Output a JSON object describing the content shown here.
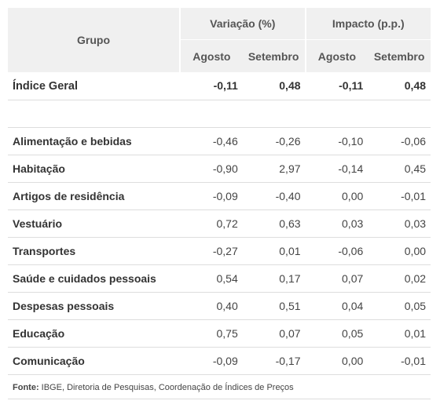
{
  "header": {
    "group_label": "Grupo",
    "variation_label": "Variação (%)",
    "impact_label": "Impacto (p.p.)",
    "august_label": "Agosto",
    "september_label": "Setembro"
  },
  "total": {
    "name": "Índice Geral",
    "var_aug": "-0,11",
    "var_sep": "0,48",
    "imp_aug": "-0,11",
    "imp_sep": "0,48"
  },
  "rows": [
    {
      "name": "Alimentação e bebidas",
      "var_aug": "-0,46",
      "var_sep": "-0,26",
      "imp_aug": "-0,10",
      "imp_sep": "-0,06"
    },
    {
      "name": "Habitação",
      "var_aug": "-0,90",
      "var_sep": "2,97",
      "imp_aug": "-0,14",
      "imp_sep": "0,45"
    },
    {
      "name": "Artigos de residência",
      "var_aug": "-0,09",
      "var_sep": "-0,40",
      "imp_aug": "0,00",
      "imp_sep": "-0,01"
    },
    {
      "name": "Vestuário",
      "var_aug": "0,72",
      "var_sep": "0,63",
      "imp_aug": "0,03",
      "imp_sep": "0,03"
    },
    {
      "name": "Transportes",
      "var_aug": "-0,27",
      "var_sep": "0,01",
      "imp_aug": "-0,06",
      "imp_sep": "0,00"
    },
    {
      "name": "Saúde e cuidados pessoais",
      "var_aug": "0,54",
      "var_sep": "0,17",
      "imp_aug": "0,07",
      "imp_sep": "0,02"
    },
    {
      "name": "Despesas pessoais",
      "var_aug": "0,40",
      "var_sep": "0,51",
      "imp_aug": "0,04",
      "imp_sep": "0,05"
    },
    {
      "name": "Educação",
      "var_aug": "0,75",
      "var_sep": "0,07",
      "imp_aug": "0,05",
      "imp_sep": "0,01"
    },
    {
      "name": "Comunicação",
      "var_aug": "-0,09",
      "var_sep": "-0,17",
      "imp_aug": "0,00",
      "imp_sep": "-0,01"
    }
  ],
  "source": {
    "label": "Fonte:",
    "text": " IBGE, Diretoria de Pesquisas, Coordenação de Índices de Preços"
  },
  "colors": {
    "header_bg": "#f0f0f0",
    "row_border": "#dddddd"
  }
}
